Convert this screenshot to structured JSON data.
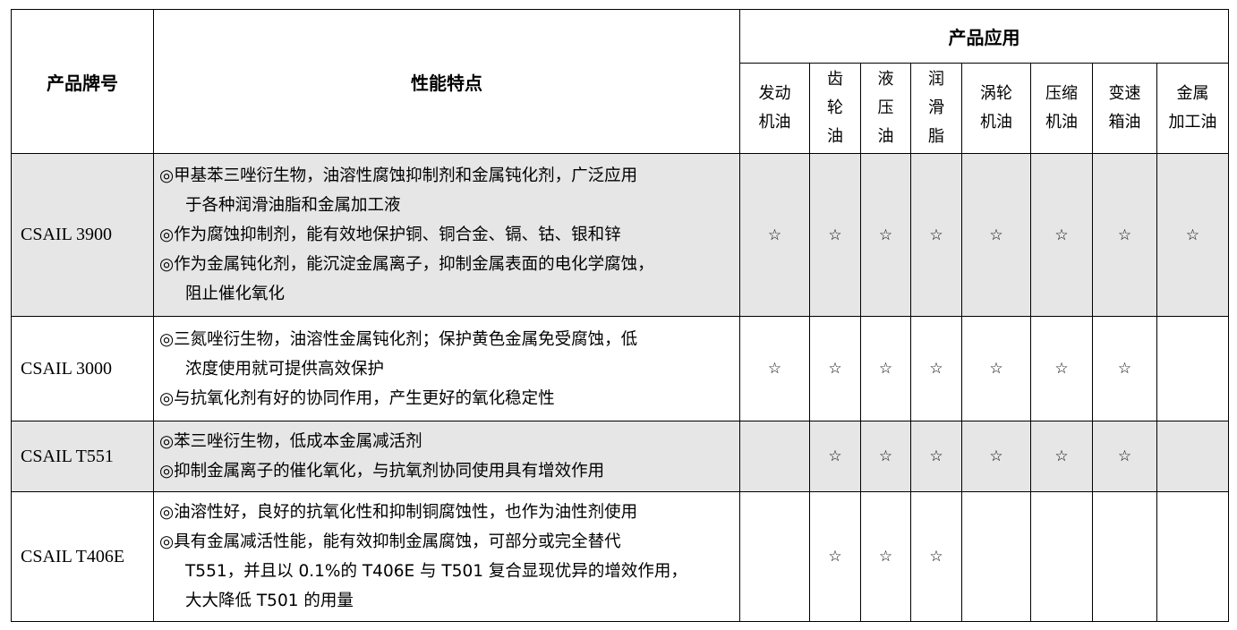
{
  "header": {
    "product": "产品牌号",
    "features": "性能特点",
    "applications": "产品应用",
    "app_columns": [
      [
        "发动",
        "机油"
      ],
      [
        "齿",
        "轮",
        "油"
      ],
      [
        "液",
        "压",
        "油"
      ],
      [
        "润",
        "滑",
        "脂"
      ],
      [
        "涡轮",
        "机油"
      ],
      [
        "压缩",
        "机油"
      ],
      [
        "变速",
        "箱油"
      ],
      [
        "金属",
        "加工油"
      ]
    ]
  },
  "star_glyph": "☆",
  "colors": {
    "shaded_row": "#e6e6e6"
  },
  "rows": [
    {
      "product": "CSAIL 3900",
      "shaded": true,
      "features": [
        [
          "◎甲基苯三唑衍生物，油溶性腐蚀抑制剂和金属钝化剂，广泛应用",
          "于各种润滑油脂和金属加工液"
        ],
        [
          "◎作为腐蚀抑制剂，能有效地保护铜、铜合金、镉、钴、银和锌"
        ],
        [
          "◎作为金属钝化剂，能沉淀金属离子，抑制金属表面的电化学腐蚀，",
          "阻止催化氧化"
        ]
      ],
      "apps": [
        true,
        true,
        true,
        true,
        true,
        true,
        true,
        true
      ]
    },
    {
      "product": "CSAIL 3000",
      "shaded": false,
      "features": [
        [
          "◎三氮唑衍生物，油溶性金属钝化剂；保护黄色金属免受腐蚀，低",
          "浓度使用就可提供高效保护"
        ],
        [
          "◎与抗氧化剂有好的协同作用，产生更好的氧化稳定性"
        ]
      ],
      "apps": [
        true,
        true,
        true,
        true,
        true,
        true,
        true,
        false
      ]
    },
    {
      "product": "CSAIL T551",
      "shaded": true,
      "features": [
        [
          "◎苯三唑衍生物，低成本金属减活剂"
        ],
        [
          "◎抑制金属离子的催化氧化，与抗氧剂协同使用具有增效作用"
        ]
      ],
      "apps": [
        false,
        true,
        true,
        true,
        true,
        true,
        true,
        false
      ]
    },
    {
      "product": "CSAIL T406E",
      "shaded": false,
      "features": [
        [
          "◎油溶性好，良好的抗氧化性和抑制铜腐蚀性，也作为油性剂使用"
        ],
        [
          "◎具有金属减活性能，能有效抑制金属腐蚀，可部分或完全替代",
          "T551，并且以 0.1%的 T406E 与 T501 复合显现优异的增效作用，",
          "大大降低 T501 的用量"
        ]
      ],
      "apps": [
        false,
        true,
        true,
        true,
        false,
        false,
        false,
        false
      ]
    }
  ]
}
